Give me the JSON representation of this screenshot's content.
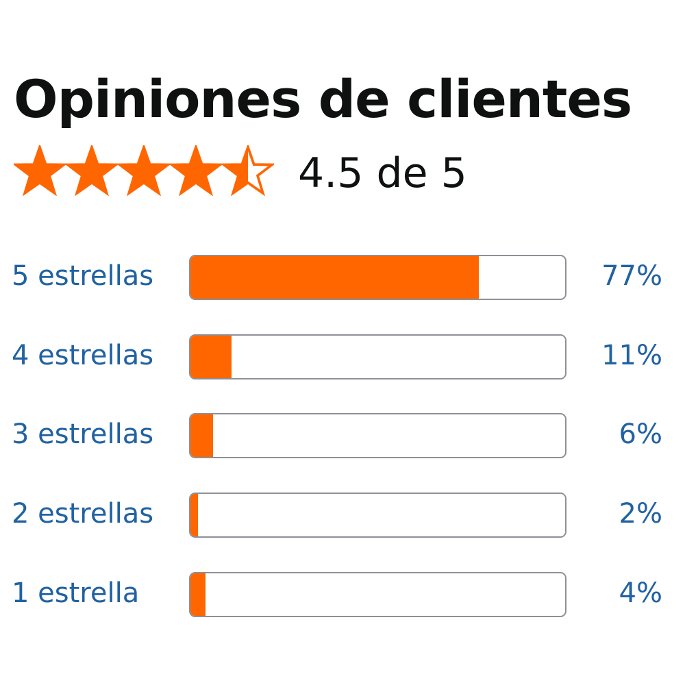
{
  "title": "Opiniones de clientes",
  "rating": {
    "value": 4.5,
    "max": 5,
    "text": "4.5 de 5",
    "star_color": "#ff6600"
  },
  "chart_data": {
    "type": "bar",
    "orientation": "horizontal",
    "categories": [
      "5 estrellas",
      "4 estrellas",
      "3 estrellas",
      "2 estrellas",
      "1 estrella"
    ],
    "values": [
      77,
      11,
      6,
      2,
      4
    ],
    "value_labels": [
      "77%",
      "11%",
      "6%",
      "2%",
      "4%"
    ],
    "xlim": [
      0,
      100
    ],
    "bar_color": "#ff6600",
    "label_color": "#2162a1"
  }
}
